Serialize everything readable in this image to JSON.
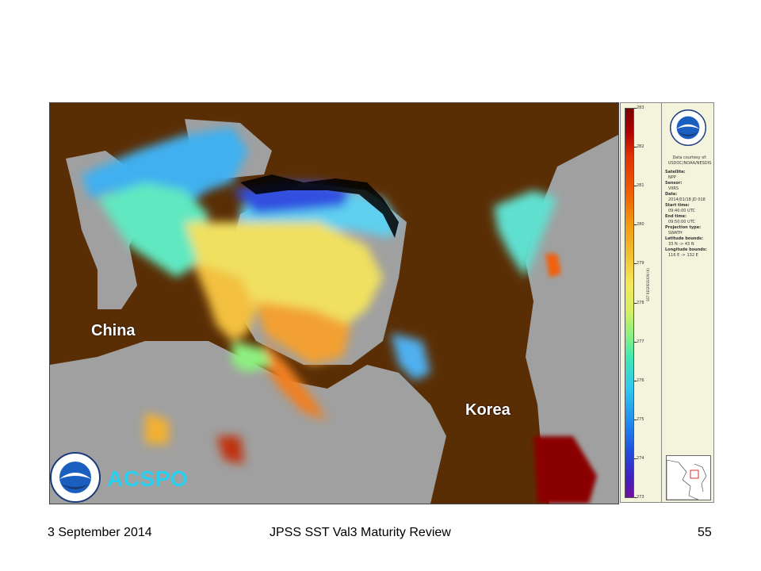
{
  "map": {
    "labels": {
      "china": "China",
      "korea": "Korea"
    },
    "product": "ACSPO",
    "colors": {
      "land": "#5a2e05",
      "cloud": "#a0a0a0",
      "ice_edge": "#000000",
      "product_text": "#29d0f0"
    }
  },
  "colorbar": {
    "ticks": [
      "283",
      "282",
      "281",
      "280",
      "279",
      "278",
      "277",
      "276",
      "275",
      "274",
      "273"
    ],
    "label": "SST REGRESSION (K)"
  },
  "info": {
    "data_courtesy_label": "Data courtesy of:",
    "data_courtesy": "USDOC/NOAA/NESDIS",
    "satellite_label": "Satellite:",
    "satellite": "NPP",
    "sensor_label": "Sensor:",
    "sensor": "VIIRS",
    "date_label": "Date:",
    "date": "2014/01/18 JD 018",
    "start_label": "Start time:",
    "start": "09:40:00 UTC",
    "end_label": "End time:",
    "end": "09:50:00 UTC",
    "projection_label": "Projection type:",
    "projection": "SWATH",
    "lat_label": "Latitude bounds:",
    "lat": "33 N -> 43 N",
    "lon_label": "Longitude bounds:",
    "lon": "116 E -> 132 E"
  },
  "footer": {
    "date": "3 September 2014",
    "title": "JPSS SST Val3 Maturity Review",
    "page": "55"
  }
}
